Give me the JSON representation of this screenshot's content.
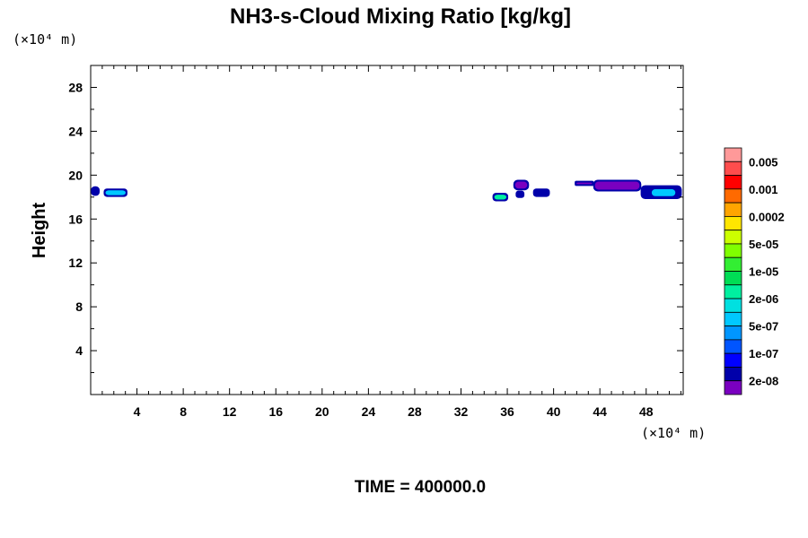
{
  "chart_data": {
    "type": "heatmap",
    "title": "NH3-s-Cloud Mixing Ratio [kg/kg]",
    "xlabel": "",
    "ylabel": "Height",
    "x_unit": "(×10⁴ m)",
    "y_unit": "(×10⁴ m)",
    "xlim": [
      0,
      51.2
    ],
    "ylim": [
      0,
      30
    ],
    "x_ticks": [
      4,
      8,
      12,
      16,
      20,
      24,
      28,
      32,
      36,
      40,
      44,
      48
    ],
    "y_ticks": [
      4,
      8,
      12,
      16,
      20,
      24,
      28
    ],
    "colorbar": {
      "labels": [
        "0.005",
        "0.001",
        "0.0002",
        "5e-05",
        "1e-05",
        "2e-06",
        "5e-07",
        "1e-07",
        "2e-08"
      ],
      "colors": [
        "#ff9999",
        "#ff4d4d",
        "#ff0000",
        "#ff6a00",
        "#ffa500",
        "#ffe600",
        "#ccff00",
        "#80ff00",
        "#33ee33",
        "#00dd55",
        "#00f0a0",
        "#00e0e0",
        "#00c8ff",
        "#0096ff",
        "#0055ff",
        "#0000ff",
        "#0000aa",
        "#7a00c0"
      ]
    },
    "cloud_patches": [
      {
        "x": [
          0.1,
          0.7
        ],
        "y": [
          18.2,
          18.9
        ],
        "level": "1e-07"
      },
      {
        "x": [
          1.2,
          3.1
        ],
        "y": [
          18.1,
          18.7
        ],
        "level": "2e-06"
      },
      {
        "x": [
          34.8,
          36.0
        ],
        "y": [
          17.7,
          18.3
        ],
        "level": "1e-05"
      },
      {
        "x": [
          36.6,
          37.8
        ],
        "y": [
          18.7,
          19.5
        ],
        "level": "2e-08"
      },
      {
        "x": [
          36.8,
          37.4
        ],
        "y": [
          18.0,
          18.5
        ],
        "level": "1e-07"
      },
      {
        "x": [
          38.3,
          39.6
        ],
        "y": [
          18.1,
          18.7
        ],
        "level": "1e-07"
      },
      {
        "x": [
          41.9,
          43.4
        ],
        "y": [
          19.1,
          19.4
        ],
        "level": "2e-08"
      },
      {
        "x": [
          43.5,
          47.5
        ],
        "y": [
          18.6,
          19.5
        ],
        "level": "2e-08"
      },
      {
        "x": [
          47.6,
          51.0
        ],
        "y": [
          17.9,
          19.0
        ],
        "level": "1e-07"
      },
      {
        "x": [
          48.4,
          50.6
        ],
        "y": [
          18.0,
          18.8
        ],
        "level": "2e-06"
      }
    ]
  },
  "time_label": "TIME = 400000.0"
}
